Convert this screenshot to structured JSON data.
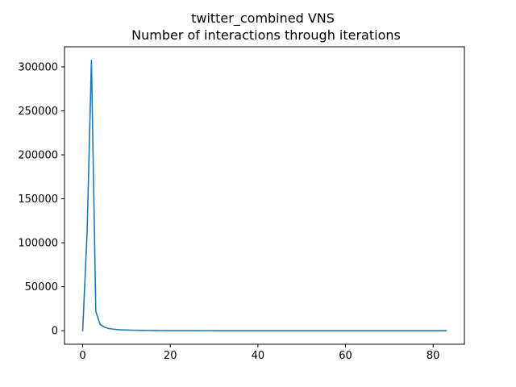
{
  "chart_data": {
    "type": "line",
    "title": "twitter_combined VNS",
    "subtitle": "Number of interactions through iterations",
    "xlabel": "",
    "ylabel": "",
    "xlim": [
      -4.15,
      87.15
    ],
    "ylim": [
      -15380,
      322880
    ],
    "x_ticks": [
      0,
      20,
      40,
      60,
      80
    ],
    "y_ticks": [
      0,
      50000,
      100000,
      150000,
      200000,
      250000,
      300000
    ],
    "grid": false,
    "legend": "none",
    "line_color": "#1f77b4",
    "series": [
      {
        "x": [
          0,
          1,
          2,
          3,
          4,
          5,
          6,
          7,
          8,
          9,
          10,
          11,
          12,
          13,
          14,
          15,
          16,
          17,
          18,
          19,
          20,
          21,
          22,
          23,
          24,
          25,
          26,
          27,
          28,
          29,
          30,
          31,
          32,
          33,
          34,
          35,
          36,
          37,
          38,
          39,
          40,
          41,
          42,
          43,
          44,
          45,
          46,
          47,
          48,
          49,
          50,
          51,
          52,
          53,
          54,
          55,
          56,
          57,
          58,
          59,
          60,
          61,
          62,
          63,
          64,
          65,
          66,
          67,
          68,
          69,
          70,
          71,
          72,
          73,
          74,
          75,
          76,
          77,
          78,
          79,
          80,
          81,
          82,
          83
        ],
        "values": [
          0,
          110000,
          307500,
          22000,
          7000,
          4000,
          2500,
          1800,
          1300,
          1000,
          800,
          650,
          550,
          450,
          380,
          320,
          280,
          240,
          210,
          190,
          170,
          150,
          140,
          130,
          120,
          110,
          100,
          95,
          90,
          85,
          80,
          75,
          70,
          68,
          65,
          62,
          60,
          58,
          56,
          54,
          52,
          50,
          48,
          46,
          45,
          44,
          43,
          42,
          41,
          40,
          39,
          38,
          37,
          36,
          35,
          34,
          33,
          32,
          31,
          30,
          30,
          29,
          29,
          28,
          28,
          27,
          27,
          26,
          26,
          25,
          25,
          24,
          24,
          23,
          23,
          22,
          22,
          21,
          21,
          20,
          20,
          20,
          19,
          19
        ]
      }
    ]
  }
}
